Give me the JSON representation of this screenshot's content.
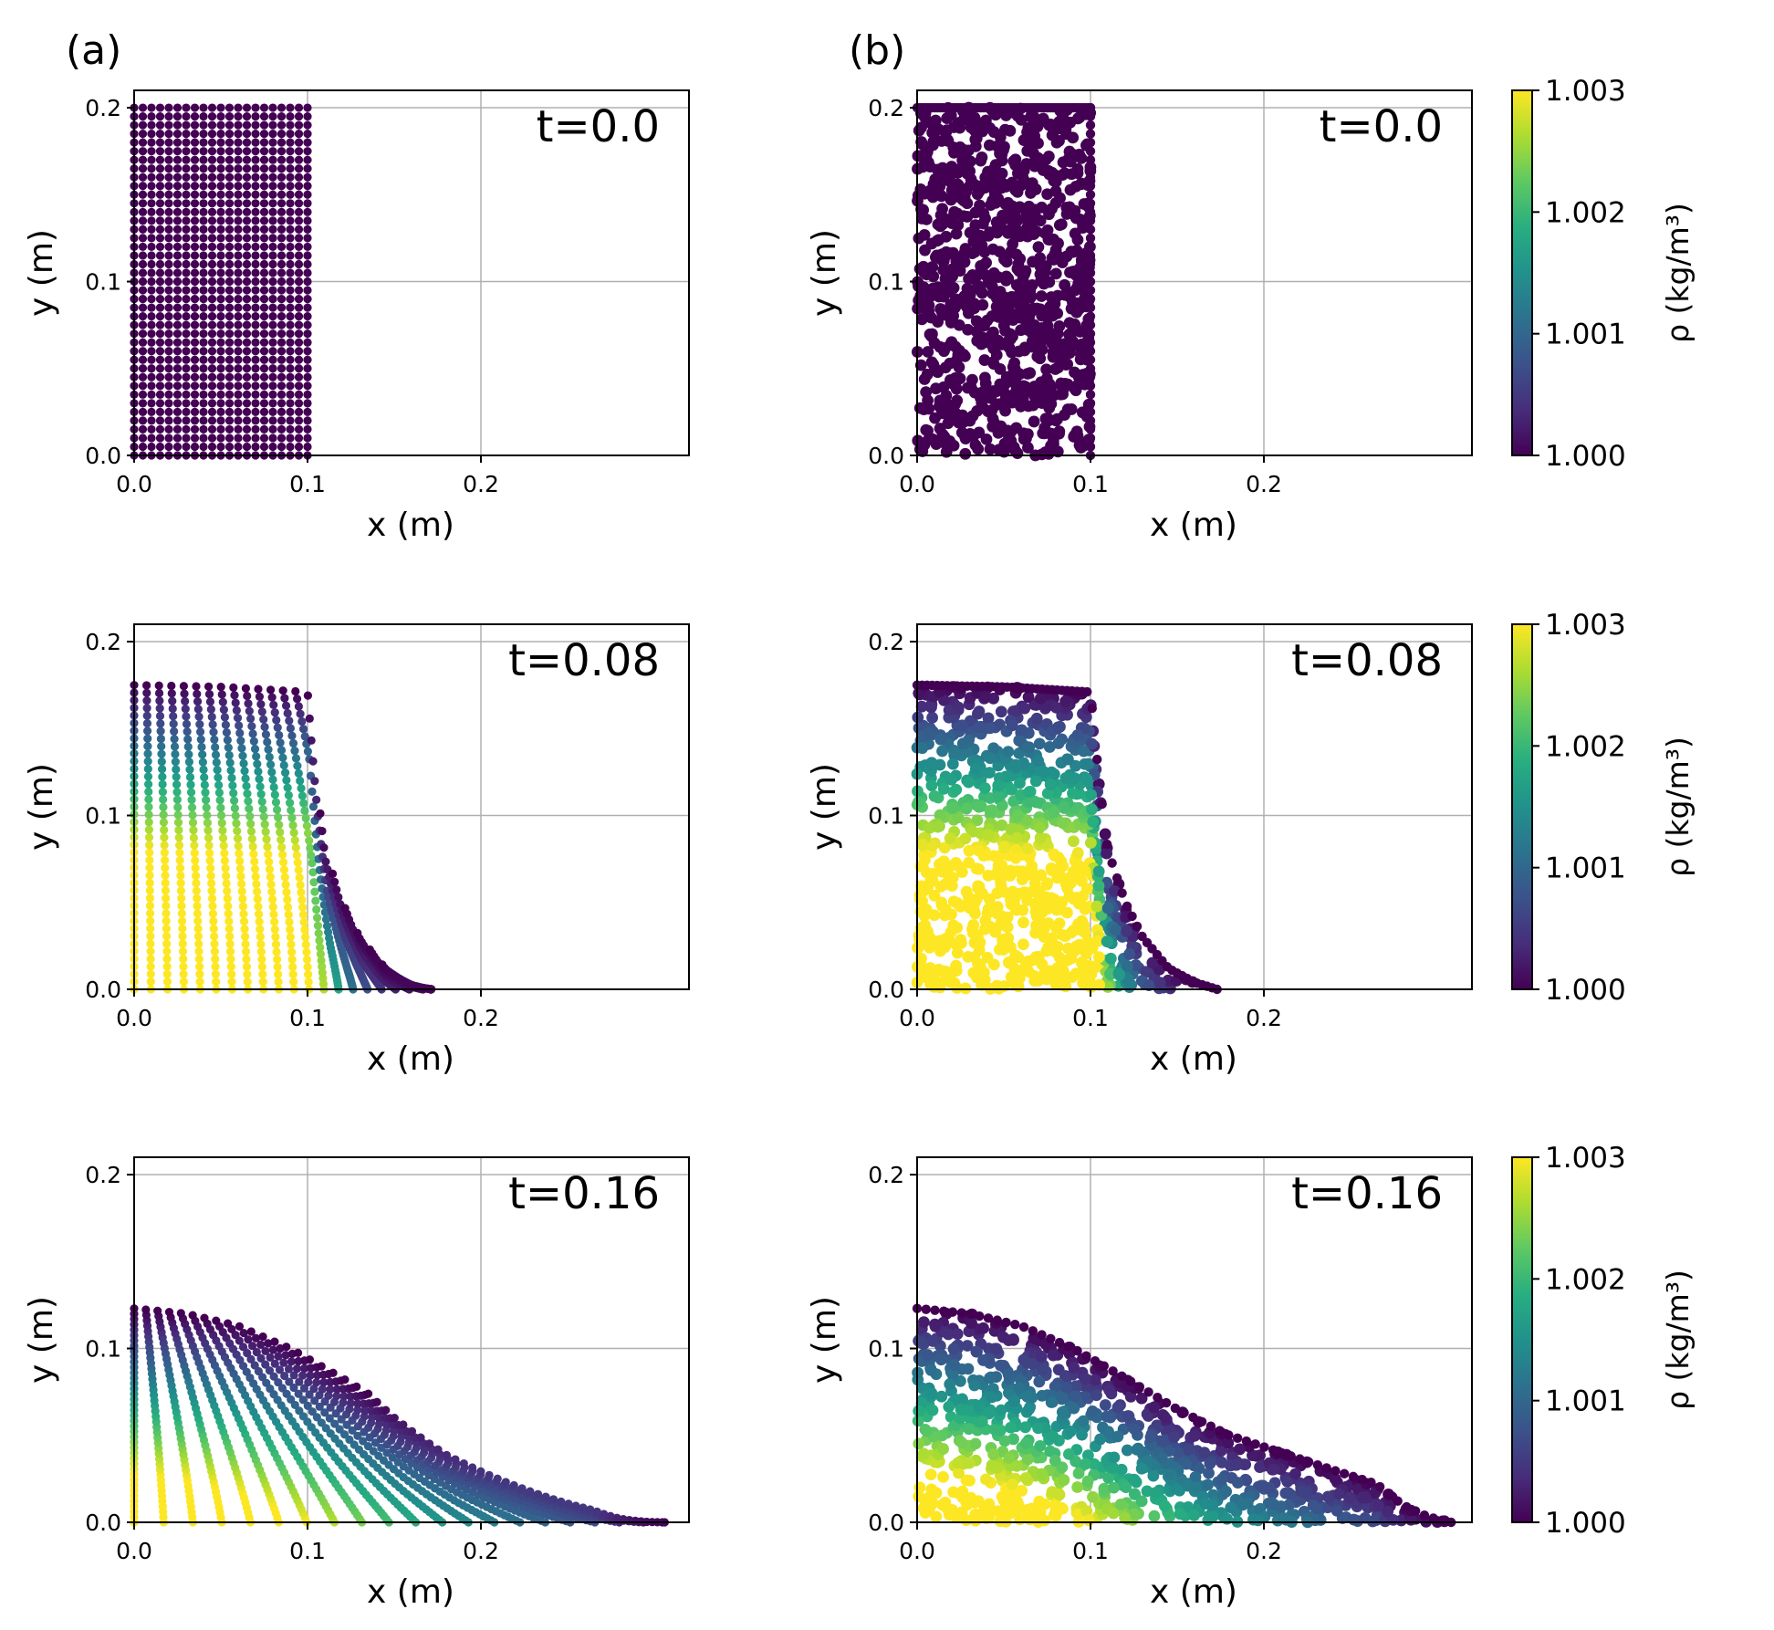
{
  "figure": {
    "panel_labels": [
      "(a)",
      "(b)"
    ]
  },
  "chart_data": [
    {
      "type": "scatter",
      "id": "a-t0",
      "column": "a",
      "time_label": "t=0.0",
      "xlabel": "x (m)",
      "ylabel": "y (m)",
      "xlim": [
        0,
        0.32
      ],
      "ylim": [
        0,
        0.21
      ],
      "xticks": [
        "0.0",
        "0.1",
        "0.2"
      ],
      "yticks": [
        "0.0",
        "0.1",
        "0.2"
      ],
      "particles": "regular-lattice",
      "grid": true,
      "surface": [
        [
          0,
          0.2
        ],
        [
          0.1,
          0.2
        ],
        [
          0.1,
          0
        ]
      ],
      "density_range": [
        1.0,
        1.0
      ]
    },
    {
      "type": "scatter",
      "id": "b-t0",
      "column": "b",
      "time_label": "t=0.0",
      "xlabel": "x (m)",
      "ylabel": "y (m)",
      "xlim": [
        0,
        0.32
      ],
      "ylim": [
        0,
        0.21
      ],
      "xticks": [
        "0.0",
        "0.1",
        "0.2"
      ],
      "yticks": [
        "0.0",
        "0.1",
        "0.2"
      ],
      "particles": "random",
      "grid": true,
      "surface": [
        [
          0,
          0.2
        ],
        [
          0.1,
          0.2
        ],
        [
          0.1,
          0
        ]
      ],
      "density_range": [
        1.0,
        1.0
      ],
      "colorbar": {
        "label": "ρ (kg/m³)",
        "ticks": [
          "1.000",
          "1.001",
          "1.002",
          "1.003"
        ],
        "range": [
          1.0,
          1.003
        ]
      }
    },
    {
      "type": "scatter",
      "id": "a-t008",
      "column": "a",
      "time_label": "t=0.08",
      "xlabel": "x (m)",
      "ylabel": "y (m)",
      "xlim": [
        0,
        0.32
      ],
      "ylim": [
        0,
        0.21
      ],
      "xticks": [
        "0.0",
        "0.1",
        "0.2"
      ],
      "yticks": [
        "0.0",
        "0.1",
        "0.2"
      ],
      "particles": "deformed-lattice",
      "grid": true,
      "surface": [
        [
          0,
          0.175
        ],
        [
          0.05,
          0.174
        ],
        [
          0.1,
          0.171
        ],
        [
          0.105,
          0.12
        ],
        [
          0.11,
          0.08
        ],
        [
          0.12,
          0.05
        ],
        [
          0.13,
          0.03
        ],
        [
          0.145,
          0.012
        ],
        [
          0.16,
          0.004
        ],
        [
          0.173,
          0
        ]
      ],
      "density_range": [
        1.0,
        1.003
      ]
    },
    {
      "type": "scatter",
      "id": "b-t008",
      "column": "b",
      "time_label": "t=0.08",
      "xlabel": "x (m)",
      "ylabel": "y (m)",
      "xlim": [
        0,
        0.32
      ],
      "ylim": [
        0,
        0.21
      ],
      "xticks": [
        "0.0",
        "0.1",
        "0.2"
      ],
      "yticks": [
        "0.0",
        "0.1",
        "0.2"
      ],
      "particles": "random",
      "grid": true,
      "surface": [
        [
          0,
          0.175
        ],
        [
          0.05,
          0.174
        ],
        [
          0.1,
          0.171
        ],
        [
          0.105,
          0.12
        ],
        [
          0.11,
          0.08
        ],
        [
          0.12,
          0.05
        ],
        [
          0.13,
          0.03
        ],
        [
          0.145,
          0.012
        ],
        [
          0.16,
          0.004
        ],
        [
          0.173,
          0
        ]
      ],
      "density_range": [
        1.0,
        1.003
      ],
      "colorbar": {
        "label": "ρ (kg/m³)",
        "ticks": [
          "1.000",
          "1.001",
          "1.002",
          "1.003"
        ],
        "range": [
          1.0,
          1.003
        ]
      }
    },
    {
      "type": "scatter",
      "id": "a-t016",
      "column": "a",
      "time_label": "t=0.16",
      "xlabel": "x (m)",
      "ylabel": "y (m)",
      "xlim": [
        0,
        0.32
      ],
      "ylim": [
        0,
        0.21
      ],
      "xticks": [
        "0.0",
        "0.1",
        "0.2"
      ],
      "yticks": [
        "0.0",
        "0.1",
        "0.2"
      ],
      "particles": "deformed-lattice",
      "grid": true,
      "surface": [
        [
          0,
          0.123
        ],
        [
          0.03,
          0.12
        ],
        [
          0.06,
          0.113
        ],
        [
          0.09,
          0.1
        ],
        [
          0.12,
          0.083
        ],
        [
          0.15,
          0.065
        ],
        [
          0.18,
          0.05
        ],
        [
          0.21,
          0.04
        ],
        [
          0.24,
          0.03
        ],
        [
          0.265,
          0.022
        ],
        [
          0.28,
          0.01
        ],
        [
          0.295,
          0.003
        ],
        [
          0.308,
          0
        ]
      ],
      "density_range": [
        1.0,
        1.003
      ]
    },
    {
      "type": "scatter",
      "id": "b-t016",
      "column": "b",
      "time_label": "t=0.16",
      "xlabel": "x (m)",
      "ylabel": "y (m)",
      "xlim": [
        0,
        0.32
      ],
      "ylim": [
        0,
        0.21
      ],
      "xticks": [
        "0.0",
        "0.1",
        "0.2"
      ],
      "yticks": [
        "0.0",
        "0.1",
        "0.2"
      ],
      "particles": "random",
      "grid": true,
      "surface": [
        [
          0,
          0.123
        ],
        [
          0.03,
          0.12
        ],
        [
          0.06,
          0.113
        ],
        [
          0.09,
          0.1
        ],
        [
          0.12,
          0.083
        ],
        [
          0.15,
          0.065
        ],
        [
          0.18,
          0.05
        ],
        [
          0.21,
          0.04
        ],
        [
          0.24,
          0.03
        ],
        [
          0.265,
          0.022
        ],
        [
          0.28,
          0.01
        ],
        [
          0.295,
          0.003
        ],
        [
          0.308,
          0
        ]
      ],
      "density_range": [
        1.0,
        1.003
      ],
      "colorbar": {
        "label": "ρ (kg/m³)",
        "ticks": [
          "1.000",
          "1.001",
          "1.002",
          "1.003"
        ],
        "range": [
          1.0,
          1.003
        ]
      }
    }
  ]
}
